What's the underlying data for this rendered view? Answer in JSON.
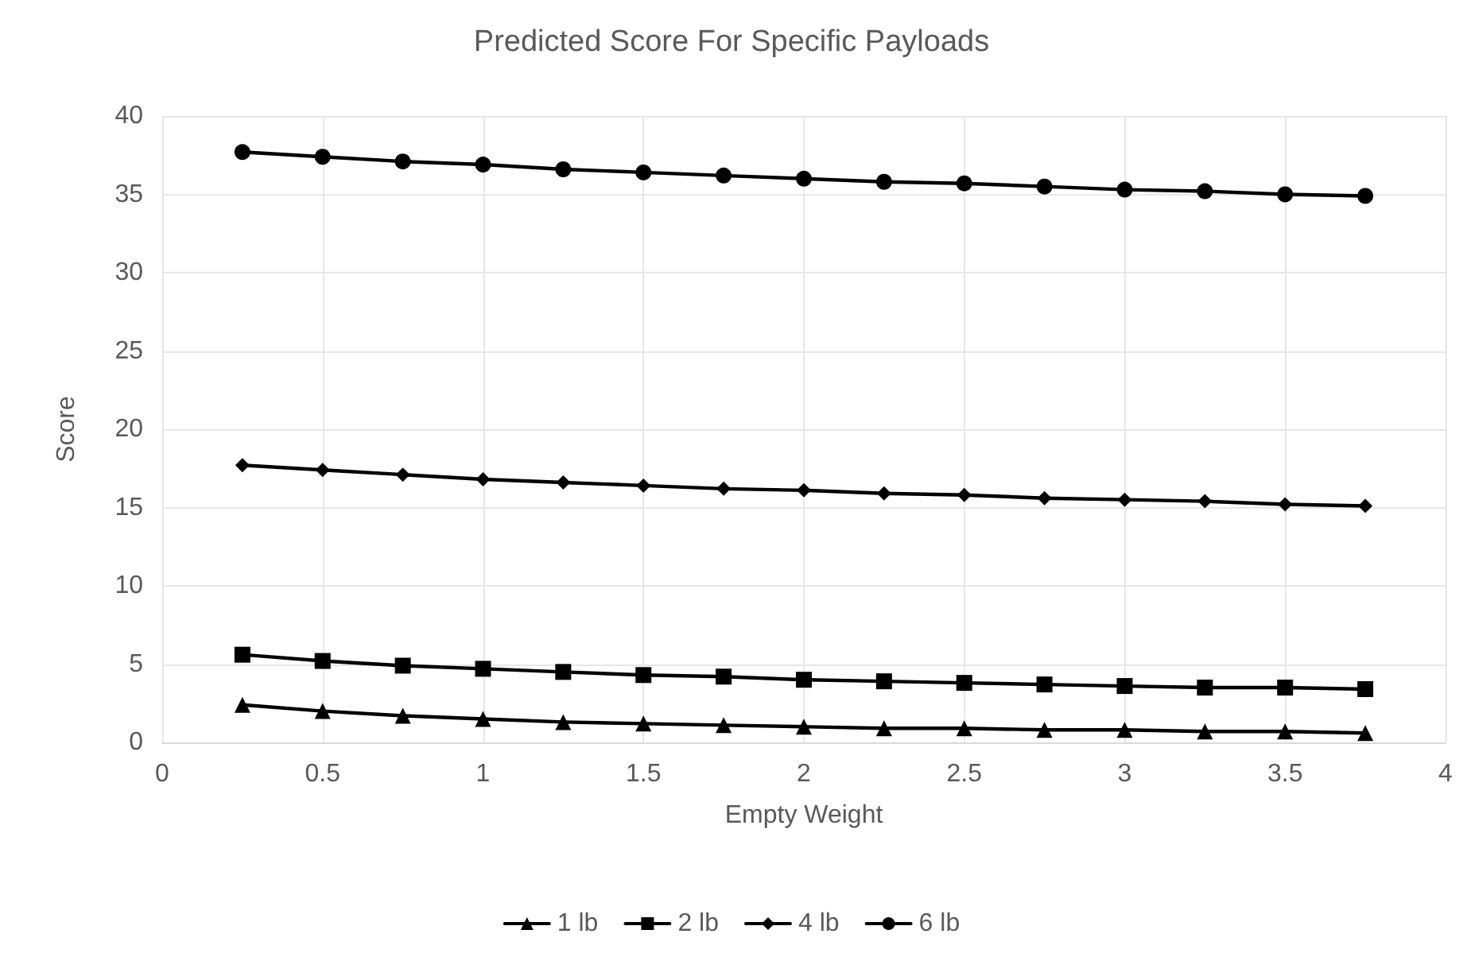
{
  "chart_data": {
    "type": "line",
    "title": "Predicted Score For Specific Payloads",
    "xlabel": "Empty Weight",
    "ylabel": "Score",
    "x": [
      0.25,
      0.5,
      0.75,
      1,
      1.25,
      1.5,
      1.75,
      2,
      2.25,
      2.5,
      2.75,
      3,
      3.25,
      3.5,
      3.75
    ],
    "series": [
      {
        "name": "1 lb",
        "color": "#000000",
        "marker": "triangle",
        "values": [
          2.4,
          2.0,
          1.7,
          1.5,
          1.3,
          1.2,
          1.1,
          1.0,
          0.9,
          0.9,
          0.8,
          0.8,
          0.7,
          0.7,
          0.6
        ]
      },
      {
        "name": "2 lb",
        "color": "#000000",
        "marker": "square",
        "values": [
          5.6,
          5.2,
          4.9,
          4.7,
          4.5,
          4.3,
          4.2,
          4.0,
          3.9,
          3.8,
          3.7,
          3.6,
          3.5,
          3.5,
          3.4
        ]
      },
      {
        "name": "4 lb",
        "color": "#000000",
        "marker": "diamond",
        "values": [
          17.7,
          17.4,
          17.1,
          16.8,
          16.6,
          16.4,
          16.2,
          16.1,
          15.9,
          15.8,
          15.6,
          15.5,
          15.4,
          15.2,
          15.1
        ]
      },
      {
        "name": "6 lb",
        "color": "#000000",
        "marker": "circle",
        "values": [
          37.7,
          37.4,
          37.1,
          36.9,
          36.6,
          36.4,
          36.2,
          36.0,
          35.8,
          35.7,
          35.5,
          35.3,
          35.2,
          35.0,
          34.9
        ]
      }
    ],
    "xlim": [
      0,
      4
    ],
    "xticks": [
      0,
      0.5,
      1,
      1.5,
      2,
      2.5,
      3,
      3.5,
      4
    ],
    "ylim": [
      0,
      40
    ],
    "yticks": [
      0,
      5,
      10,
      15,
      20,
      25,
      30,
      35,
      40
    ],
    "grid": true,
    "legend": "bottom",
    "line_style": "solid"
  }
}
